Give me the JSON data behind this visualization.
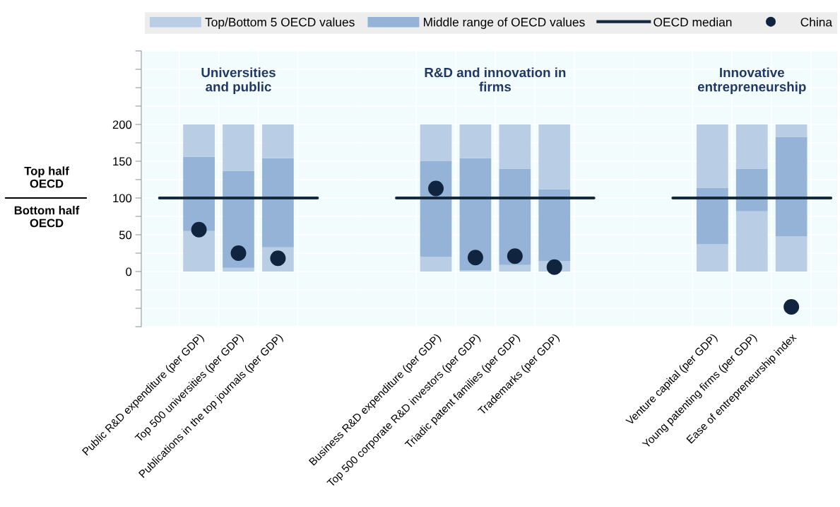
{
  "chart_data": [
    {
      "type": "bar",
      "stacked": true,
      "title": "Universities\nand public",
      "legend": "top",
      "grid": true,
      "annotations": [
        "Top half\nOECD",
        "Bottom half\nOECD"
      ],
      "categories": [
        "Public R&D expenditure (per GDP)",
        "Top 500 universities (per GDP)",
        "Publications in the top journals (per GDP)"
      ],
      "ylim": [
        -75,
        300
      ],
      "yticks": [
        {
          "value": -75,
          "label": null
        },
        {
          "value": -50,
          "label": null
        },
        {
          "value": -25,
          "label": null
        },
        0,
        {
          "value": 25,
          "label": null
        },
        50,
        {
          "value": 75,
          "label": null
        },
        100,
        {
          "value": 125,
          "label": null
        },
        150,
        {
          "value": 175,
          "label": null
        },
        200,
        {
          "value": 225,
          "label": null
        },
        {
          "value": 250,
          "label": null
        },
        {
          "value": 275,
          "label": null
        },
        {
          "value": 300,
          "label": null
        }
      ],
      "ref_lines": [
        {
          "axis": "y",
          "value": 100,
          "label": "OECD median",
          "color": "#13293d"
        }
      ],
      "series": [
        {
          "name": "Top/Bottom 5 OECD values",
          "color": "#b9cde5",
          "values": [
            55,
            5,
            33
          ]
        },
        {
          "name": "Middle range of OECD values",
          "color": "#95b3d7",
          "values": [
            101,
            132,
            121
          ]
        },
        {
          "color": "#b9cde5",
          "values": [
            44,
            63,
            46
          ]
        },
        {
          "name": "China",
          "type": "scatter",
          "marker": "circle",
          "color": "#10243f",
          "values": [
            57,
            25,
            18
          ]
        }
      ]
    },
    {
      "type": "bar",
      "stacked": true,
      "title": "R&D and innovation in\nfirms",
      "grid": true,
      "tick_labels": "x",
      "categories": [
        "Business R&D expenditure (per GDP)",
        "Top 500 corporate R&D investors (per GDP)",
        "Triadic patent families (per GDP)",
        "Trademarks (per GDP)"
      ],
      "ylim": [
        -75,
        300
      ],
      "yticks": [
        -75,
        -50,
        -25,
        0,
        25,
        50,
        75,
        100,
        125,
        150,
        175,
        200,
        225,
        250,
        275,
        300
      ],
      "ref_lines": [
        {
          "axis": "y",
          "value": 100,
          "color": "#13293d"
        }
      ],
      "series": [
        {
          "color": "#b9cde5",
          "values": [
            20,
            2,
            9,
            14
          ]
        },
        {
          "color": "#95b3d7",
          "values": [
            130,
            152,
            131,
            98
          ]
        },
        {
          "color": "#b9cde5",
          "values": [
            50,
            46,
            60,
            88
          ]
        },
        {
          "type": "scatter",
          "marker": "circle",
          "color": "#10243f",
          "values": [
            113,
            19,
            21,
            6
          ]
        }
      ]
    },
    {
      "type": "bar",
      "stacked": true,
      "title": "Innovative\nentrepreneurship",
      "grid": true,
      "tick_labels": "x",
      "categories": [
        "Venture capital (per GDP)",
        "Young patenting firms (per GDP)",
        "Ease of entrepreneurship index"
      ],
      "ylim": [
        -75,
        300
      ],
      "yticks": [
        -75,
        -50,
        -25,
        0,
        25,
        50,
        75,
        100,
        125,
        150,
        175,
        200,
        225,
        250,
        275,
        300
      ],
      "ref_lines": [
        {
          "axis": "y",
          "value": 100,
          "color": "#13293d"
        }
      ],
      "series": [
        {
          "color": "#b9cde5",
          "values": [
            37,
            82,
            48
          ]
        },
        {
          "color": "#95b3d7",
          "values": [
            77,
            58,
            135
          ]
        },
        {
          "color": "#b9cde5",
          "values": [
            86,
            60,
            17
          ]
        },
        {
          "type": "scatter",
          "marker": "circle",
          "color": "#10243f",
          "values": [
            null,
            null,
            -48
          ]
        }
      ]
    }
  ]
}
